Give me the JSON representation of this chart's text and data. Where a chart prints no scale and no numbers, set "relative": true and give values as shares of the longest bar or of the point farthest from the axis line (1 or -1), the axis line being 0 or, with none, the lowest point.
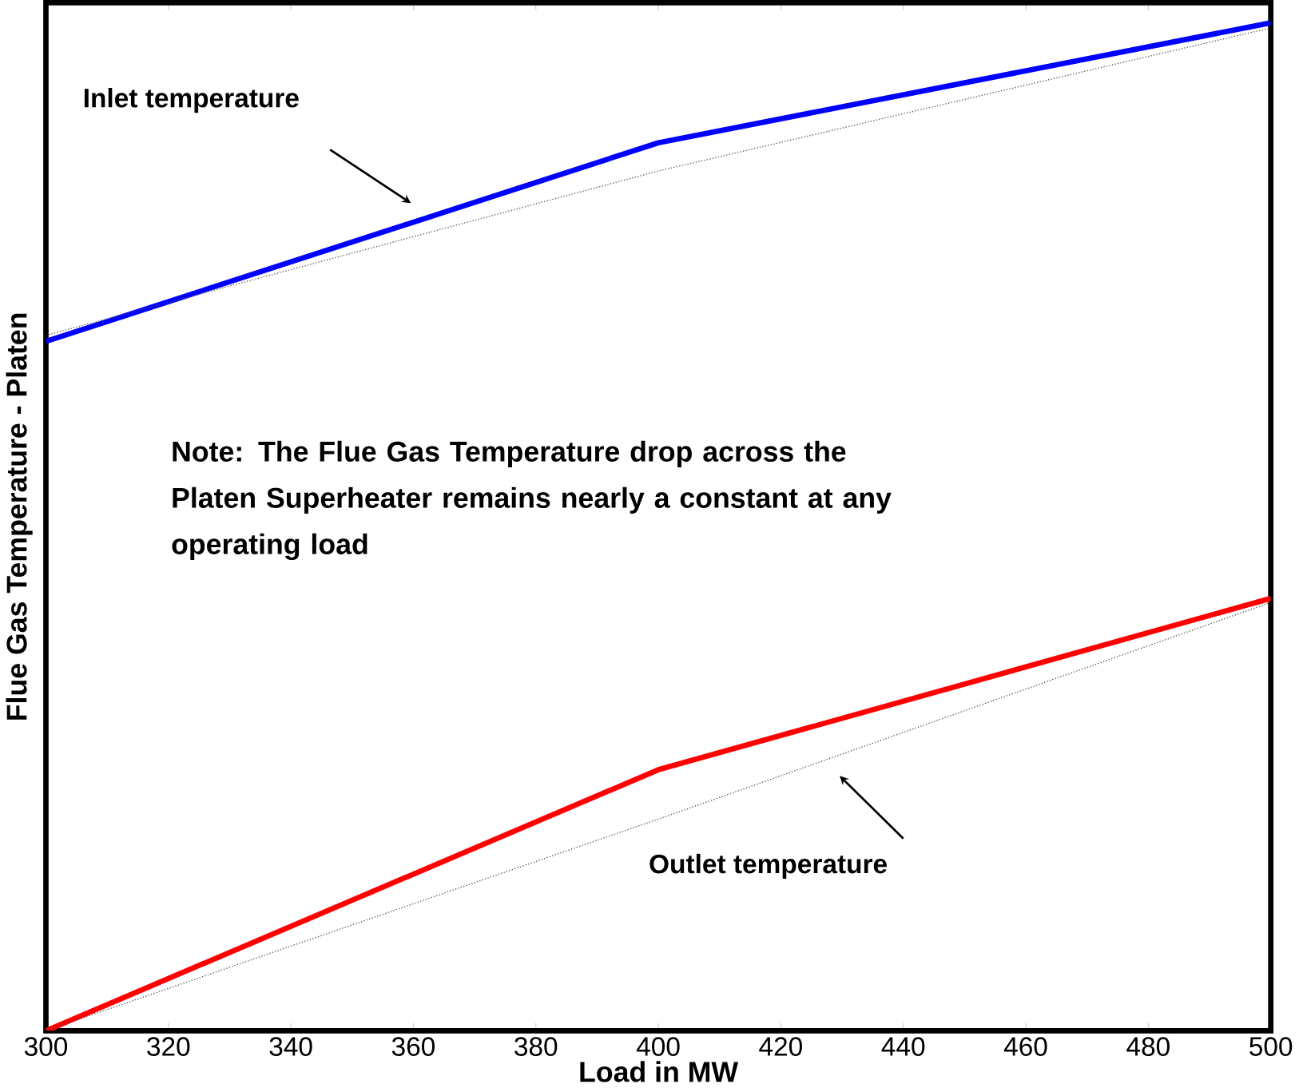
{
  "chart_data": {
    "type": "line",
    "xlabel": "Load in MW",
    "ylabel": "Flue Gas Temperature - Platen",
    "relative": true,
    "x": [
      300,
      400,
      500
    ],
    "xlim": [
      300,
      500
    ],
    "xticks": [
      300,
      320,
      340,
      360,
      380,
      400,
      420,
      440,
      460,
      480,
      500
    ],
    "series": [
      {
        "color": "#0000ff",
        "values": [
          0.684,
          0.881,
          1
        ]
      },
      {
        "color": "#ff0000",
        "values": [
          0,
          0.259,
          0.429
        ]
      },
      {
        "type": "line",
        "color": "#555555",
        "line_style": "dotted",
        "values": [
          0.69,
          0.853,
          0.995
        ]
      },
      {
        "type": "line",
        "color": "#555555",
        "line_style": "dotted",
        "values": [
          0,
          0.21,
          0.425
        ]
      }
    ],
    "annotations": [
      "Inlet temperature",
      "Outlet temperature",
      "Note:  The Flue Gas Temperature drop across the Platen Superheater remains nearly a constant at any operating load"
    ],
    "grid": false,
    "marker": "none",
    "line_style": "solid"
  }
}
